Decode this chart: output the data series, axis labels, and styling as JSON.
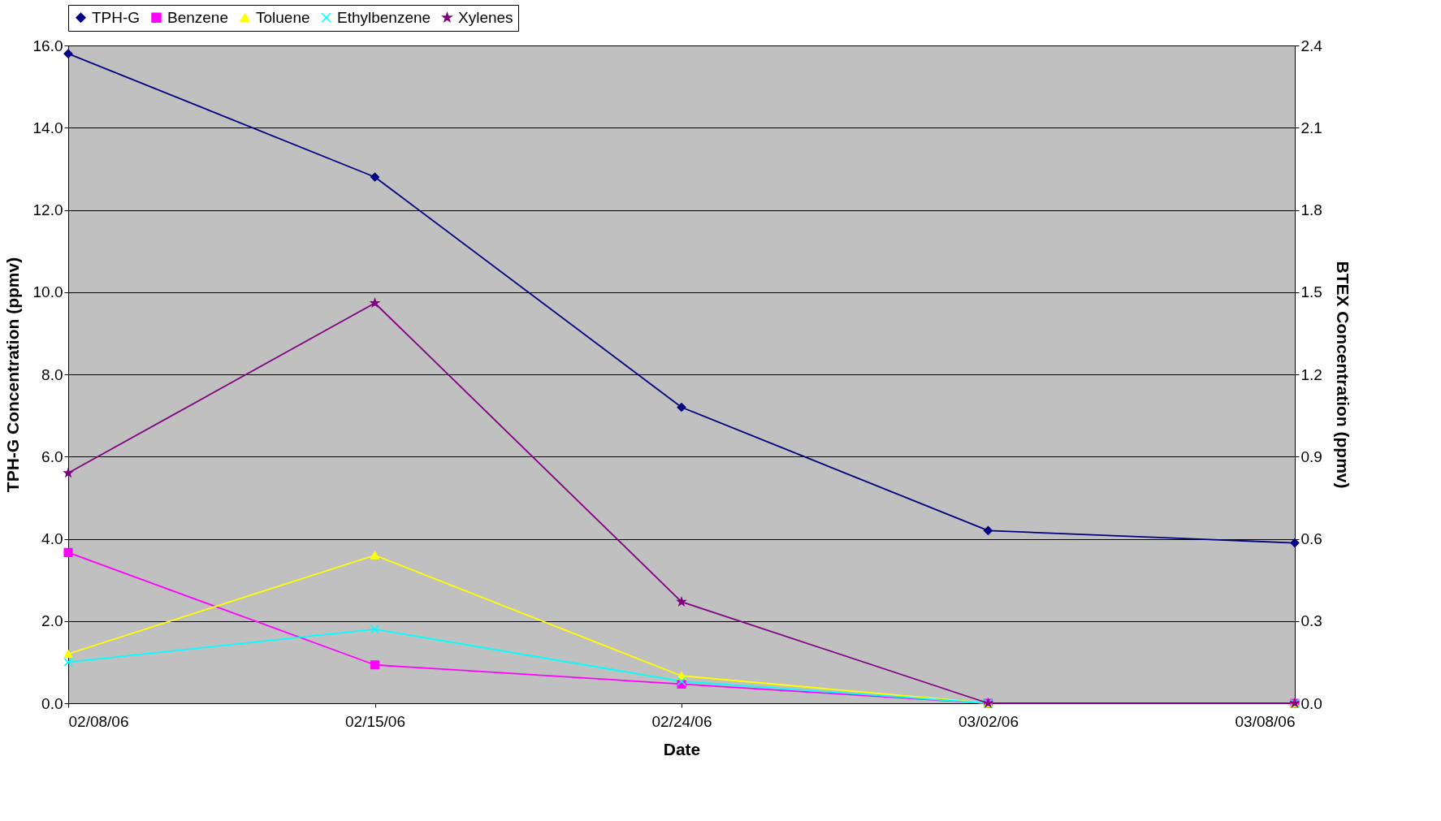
{
  "chart_data": {
    "type": "line",
    "xlabel": "Date",
    "ylabel": "TPH-G Concentration (ppmv)",
    "y2label": "BTEX Concentration (ppmv)",
    "categories": [
      "02/08/06",
      "02/15/06",
      "02/24/06",
      "03/02/06",
      "03/08/06"
    ],
    "series": [
      {
        "name": "TPH-G",
        "color": "#000080",
        "marker": "diamond",
        "values": [
          15.8,
          12.8,
          7.2,
          4.2,
          3.9
        ]
      },
      {
        "name": "Benzene",
        "color": "#ff00ff",
        "marker": "square",
        "axis": "y2",
        "values": [
          0.55,
          0.14,
          0.07,
          0,
          0
        ]
      },
      {
        "name": "Toluene",
        "color": "#ffff00",
        "marker": "triangle",
        "axis": "y2",
        "values": [
          0.18,
          0.54,
          0.1,
          0,
          0
        ]
      },
      {
        "name": "Ethylbenzene",
        "color": "#00ffff",
        "marker": "cross",
        "axis": "y2",
        "values": [
          0.15,
          0.27,
          0.08,
          0,
          0
        ]
      },
      {
        "name": "Xylenes",
        "color": "#800080",
        "marker": "star",
        "axis": "y2",
        "values": [
          0.84,
          1.46,
          0.37,
          0,
          0
        ]
      }
    ],
    "ylim": [
      0,
      16
    ],
    "yticks": [
      {
        "value": 0,
        "label": "0.0"
      },
      {
        "value": 2,
        "label": "2.0"
      },
      {
        "value": 4,
        "label": "4.0"
      },
      {
        "value": 6,
        "label": "6.0"
      },
      {
        "value": 8,
        "label": "8.0"
      },
      {
        "value": 10,
        "label": "10.0"
      },
      {
        "value": 12,
        "label": "12.0"
      },
      {
        "value": 14,
        "label": "14.0"
      },
      {
        "value": 16,
        "label": "16.0"
      }
    ],
    "y2lim": [
      0,
      2.4
    ],
    "y2ticks": [
      {
        "value": 0,
        "label": "0.0"
      },
      {
        "value": 0.3,
        "label": "0.3"
      },
      {
        "value": 0.6,
        "label": "0.6"
      },
      {
        "value": 0.9,
        "label": "0.9"
      },
      {
        "value": 1.2,
        "label": "1.2"
      },
      {
        "value": 1.5,
        "label": "1.5"
      },
      {
        "value": 1.8,
        "label": "1.8"
      },
      {
        "value": 2.1,
        "label": "2.1"
      },
      {
        "value": 2.4,
        "label": "2.4"
      }
    ],
    "grid": "y",
    "legend": "top",
    "line_style": "solid"
  }
}
